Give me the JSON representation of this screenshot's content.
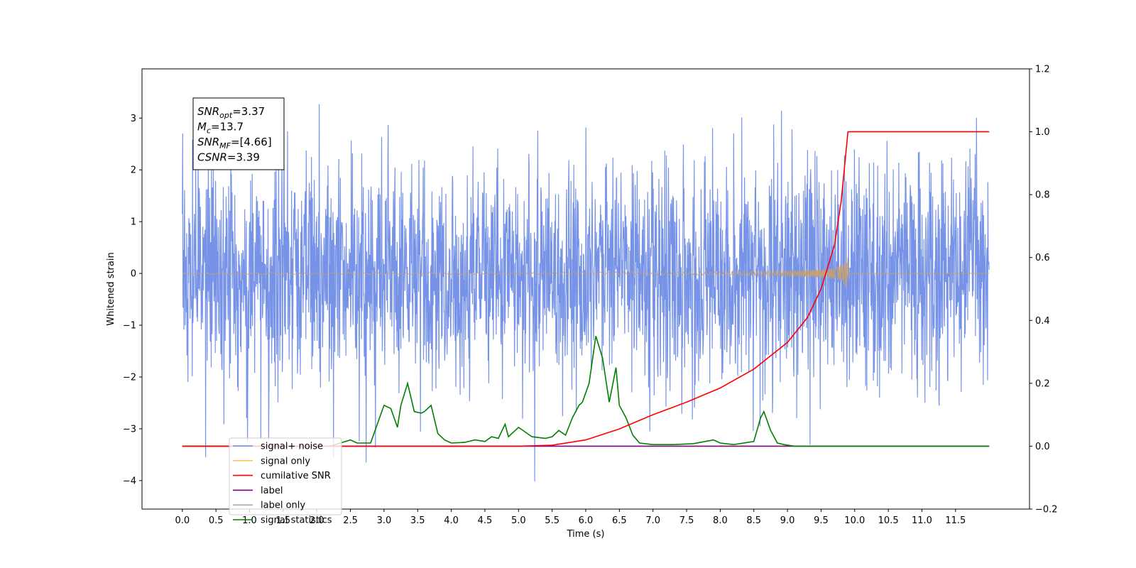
{
  "chart_data": {
    "type": "line",
    "xlabel": "Time (s)",
    "ylabel": "Whitened strain",
    "xlim": [
      -0.6,
      12.6
    ],
    "ylim": [
      -4.55,
      3.95
    ],
    "y2lim": [
      -0.2,
      1.2
    ],
    "x_ticks": [
      "0.0",
      "0.5",
      "1.0",
      "1.5",
      "2.0",
      "2.5",
      "3.0",
      "3.5",
      "4.0",
      "4.5",
      "5.0",
      "5.5",
      "6.0",
      "6.5",
      "7.0",
      "7.5",
      "8.0",
      "8.5",
      "9.0",
      "9.5",
      "10.0",
      "10.5",
      "11.0",
      "11.5"
    ],
    "y_ticks": [
      "3",
      "2",
      "1",
      "0",
      "−1",
      "−2",
      "−3",
      "−4"
    ],
    "y2_ticks": [
      "1.2",
      "1.0",
      "0.8",
      "0.6",
      "0.4",
      "0.2",
      "0.0",
      "−0.2"
    ],
    "legend": {
      "placement": "lower-left",
      "entries": [
        {
          "label": "signal+ noise",
          "color": "#6f8de6"
        },
        {
          "label": "signal only",
          "color": "#ffc266"
        },
        {
          "label": "cumilative SNR",
          "color": "#ff0000"
        },
        {
          "label": "label",
          "color": "#800080"
        },
        {
          "label": "label only",
          "color": "#aaaaaa"
        },
        {
          "label": "signal statistics",
          "color": "#008000"
        }
      ]
    },
    "annotation": [
      {
        "sym": "SNR",
        "sub": "opt",
        "val": "=3.37"
      },
      {
        "sym": "M",
        "sub": "c",
        "val": "=13.7"
      },
      {
        "sym": "SNR",
        "sub": "MF",
        "val": "=[4.66]"
      },
      {
        "sym": "CSNR",
        "sub": "",
        "val": "=3.39"
      }
    ],
    "series": [
      {
        "name": "signal+ noise",
        "axis": "left",
        "color": "#6f8de6",
        "t_range": [
          0.0,
          12.0
        ],
        "amplitude_sd": 1.0,
        "peak_range": [
          -4.1,
          3.55
        ]
      },
      {
        "name": "signal only",
        "axis": "left",
        "color": "#c8a070",
        "merger_time": 9.9,
        "peak_amplitude": 0.65
      },
      {
        "name": "cumilative SNR",
        "axis": "right",
        "color": "#ff0000",
        "x": [
          0.0,
          5.0,
          5.5,
          6.0,
          6.5,
          7.0,
          7.5,
          8.0,
          8.5,
          9.0,
          9.3,
          9.5,
          9.7,
          9.8,
          9.9,
          12.0
        ],
        "y": [
          0.0,
          0.0,
          0.003,
          0.02,
          0.055,
          0.1,
          0.14,
          0.185,
          0.245,
          0.33,
          0.41,
          0.5,
          0.64,
          0.78,
          1.0,
          1.0
        ]
      },
      {
        "name": "label",
        "axis": "right",
        "color": "#800080",
        "x": [
          0.0,
          12.0
        ],
        "y": [
          0.0,
          0.0
        ]
      },
      {
        "name": "signal statistics",
        "axis": "right",
        "color": "#008000",
        "x": [
          0.0,
          2.2,
          2.35,
          2.5,
          2.6,
          2.8,
          2.9,
          3.0,
          3.1,
          3.2,
          3.25,
          3.35,
          3.45,
          3.55,
          3.6,
          3.7,
          3.8,
          3.9,
          4.0,
          4.2,
          4.35,
          4.5,
          4.6,
          4.7,
          4.8,
          4.85,
          4.95,
          5.0,
          5.1,
          5.2,
          5.4,
          5.5,
          5.6,
          5.7,
          5.8,
          5.9,
          5.95,
          6.05,
          6.15,
          6.25,
          6.35,
          6.45,
          6.5,
          6.6,
          6.7,
          6.8,
          7.0,
          7.3,
          7.6,
          7.9,
          8.0,
          8.2,
          8.5,
          8.6,
          8.65,
          8.75,
          8.85,
          8.95,
          9.1,
          12.0
        ],
        "y": [
          0.0,
          0.0,
          0.01,
          0.02,
          0.01,
          0.01,
          0.07,
          0.13,
          0.12,
          0.06,
          0.13,
          0.2,
          0.11,
          0.105,
          0.11,
          0.13,
          0.04,
          0.02,
          0.01,
          0.012,
          0.02,
          0.015,
          0.03,
          0.025,
          0.07,
          0.03,
          0.05,
          0.06,
          0.045,
          0.03,
          0.025,
          0.03,
          0.05,
          0.035,
          0.09,
          0.13,
          0.14,
          0.2,
          0.35,
          0.28,
          0.14,
          0.25,
          0.13,
          0.09,
          0.035,
          0.01,
          0.005,
          0.005,
          0.008,
          0.02,
          0.01,
          0.005,
          0.015,
          0.09,
          0.11,
          0.05,
          0.01,
          0.005,
          0.0,
          0.0
        ]
      }
    ]
  }
}
